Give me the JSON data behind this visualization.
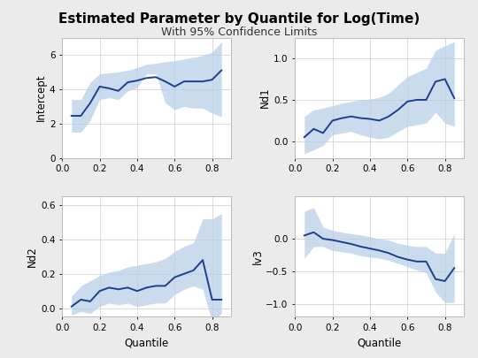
{
  "title": "Estimated Parameter by Quantile for Log(Time)",
  "subtitle": "With 95% Confidence Limits",
  "quantiles": [
    0.05,
    0.1,
    0.15,
    0.2,
    0.25,
    0.3,
    0.35,
    0.4,
    0.45,
    0.5,
    0.55,
    0.6,
    0.65,
    0.7,
    0.75,
    0.8,
    0.85
  ],
  "intercept": {
    "label": "Intercept",
    "est": [
      2.45,
      2.45,
      3.2,
      4.15,
      4.05,
      3.9,
      4.4,
      4.5,
      4.65,
      4.7,
      4.45,
      4.15,
      4.45,
      4.45,
      4.45,
      4.55,
      5.1
    ],
    "lower": [
      1.5,
      1.5,
      2.2,
      3.4,
      3.5,
      3.4,
      3.9,
      4.1,
      4.9,
      4.9,
      3.2,
      2.8,
      3.0,
      2.9,
      2.9,
      2.6,
      2.4
    ],
    "upper": [
      3.4,
      3.4,
      4.4,
      4.9,
      4.95,
      5.0,
      5.1,
      5.25,
      5.45,
      5.5,
      5.6,
      5.65,
      5.75,
      5.85,
      5.95,
      6.15,
      6.75
    ],
    "ylim": [
      0,
      7
    ],
    "yticks": [
      0,
      2,
      4,
      6
    ]
  },
  "nd1": {
    "label": "Nd1",
    "est": [
      0.05,
      0.15,
      0.1,
      0.25,
      0.28,
      0.3,
      0.28,
      0.27,
      0.25,
      0.3,
      0.38,
      0.48,
      0.5,
      0.5,
      0.72,
      0.75,
      0.52
    ],
    "lower": [
      -0.15,
      -0.1,
      -0.05,
      0.08,
      0.1,
      0.12,
      0.08,
      0.05,
      0.03,
      0.05,
      0.12,
      0.18,
      0.2,
      0.22,
      0.35,
      0.22,
      0.18
    ],
    "upper": [
      0.3,
      0.38,
      0.4,
      0.43,
      0.46,
      0.48,
      0.5,
      0.51,
      0.53,
      0.58,
      0.68,
      0.78,
      0.83,
      0.88,
      1.1,
      1.15,
      1.2
    ],
    "ylim": [
      -0.2,
      1.25
    ],
    "yticks": [
      0.0,
      0.5,
      1.0
    ]
  },
  "nd2": {
    "label": "Nd2",
    "est": [
      0.01,
      0.05,
      0.04,
      0.1,
      0.12,
      0.11,
      0.12,
      0.1,
      0.12,
      0.13,
      0.13,
      0.18,
      0.2,
      0.22,
      0.28,
      0.05,
      0.05
    ],
    "lower": [
      -0.04,
      -0.02,
      -0.03,
      0.01,
      0.03,
      0.02,
      0.03,
      0.01,
      0.02,
      0.03,
      0.03,
      0.08,
      0.11,
      0.13,
      0.11,
      -0.08,
      -0.03
    ],
    "upper": [
      0.07,
      0.13,
      0.16,
      0.19,
      0.21,
      0.22,
      0.24,
      0.25,
      0.26,
      0.27,
      0.29,
      0.33,
      0.36,
      0.38,
      0.52,
      0.52,
      0.55
    ],
    "ylim": [
      -0.05,
      0.65
    ],
    "yticks": [
      0.0,
      0.2,
      0.4,
      0.6
    ]
  },
  "lv3": {
    "label": "lv3",
    "est": [
      0.05,
      0.1,
      0.0,
      -0.02,
      -0.05,
      -0.08,
      -0.12,
      -0.15,
      -0.18,
      -0.22,
      -0.28,
      -0.32,
      -0.35,
      -0.35,
      -0.62,
      -0.65,
      -0.45
    ],
    "lower": [
      -0.3,
      -0.12,
      -0.12,
      -0.18,
      -0.2,
      -0.22,
      -0.26,
      -0.28,
      -0.3,
      -0.33,
      -0.38,
      -0.43,
      -0.48,
      -0.52,
      -0.82,
      -0.98,
      -0.98
    ],
    "upper": [
      0.42,
      0.48,
      0.18,
      0.13,
      0.1,
      0.08,
      0.06,
      0.03,
      0.0,
      -0.02,
      -0.07,
      -0.1,
      -0.12,
      -0.12,
      -0.22,
      -0.22,
      0.08
    ],
    "ylim": [
      -1.2,
      0.65
    ],
    "yticks": [
      0.0,
      -0.5,
      -1.0
    ]
  },
  "line_color": "#1f3f8f",
  "band_color": "#b8cfe8",
  "grid_color": "#cccccc",
  "bg_color": "#ebebeb",
  "axes_bg": "#ffffff",
  "xlabel": "Quantile",
  "title_fontsize": 11,
  "subtitle_fontsize": 9,
  "label_fontsize": 8.5,
  "tick_fontsize": 7.5
}
